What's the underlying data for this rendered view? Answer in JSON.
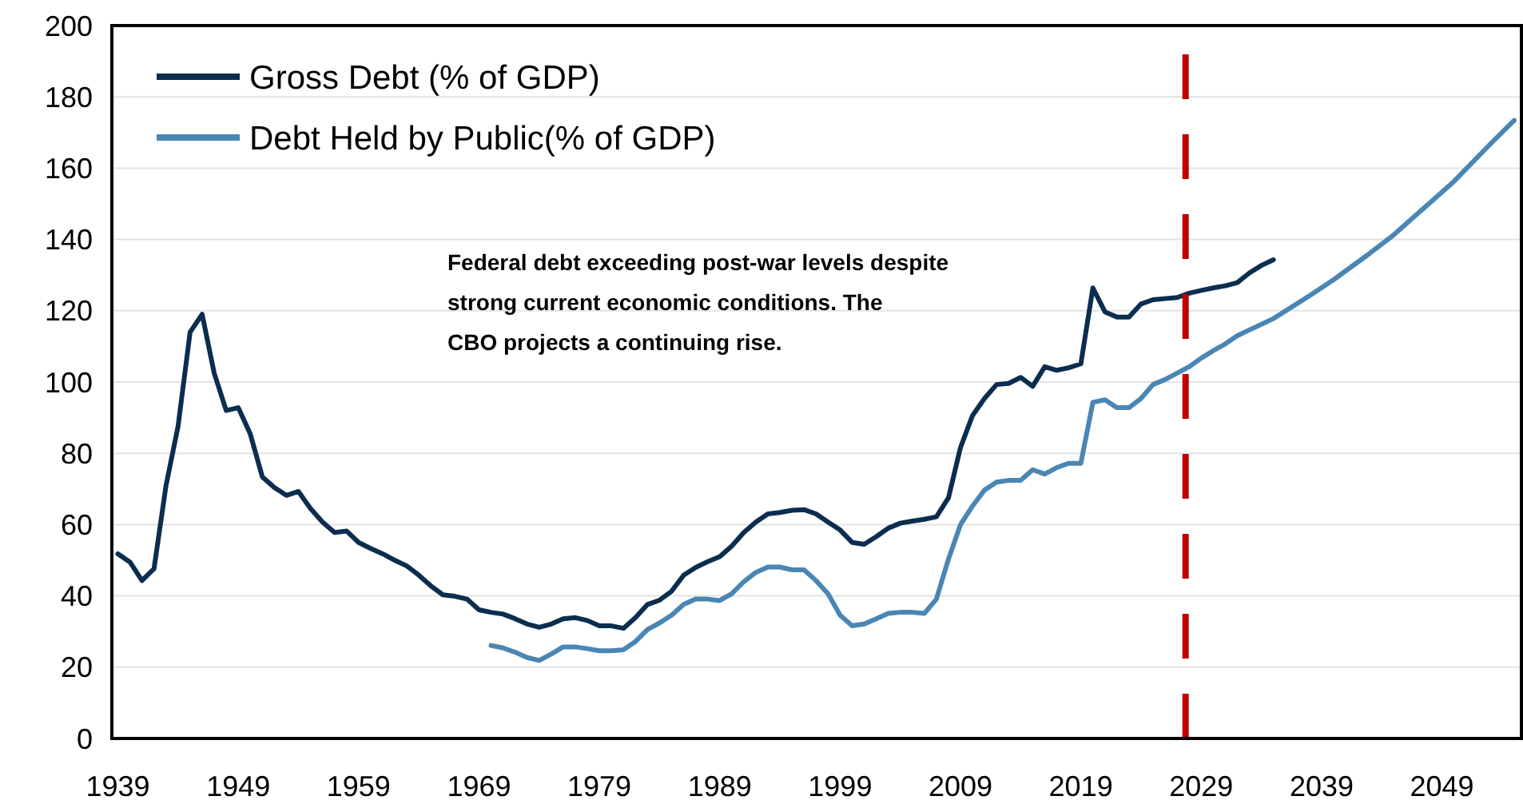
{
  "chart_data": {
    "type": "line",
    "xlim": [
      1938.5,
      2055.6
    ],
    "xticks": [
      1939,
      1949,
      1959,
      1969,
      1979,
      1989,
      1999,
      2009,
      2019,
      2029,
      2039,
      2049
    ],
    "ylim": [
      0,
      200
    ],
    "yticks": [
      0,
      20,
      40,
      60,
      80,
      100,
      120,
      140,
      160,
      180,
      200
    ],
    "grid": "y",
    "legend": "top left",
    "marker": "none",
    "line_style": "solid",
    "series": [
      {
        "name": "Gross Debt (% of GDP)",
        "color": "#0b2d4f",
        "x": [
          1939,
          1940,
          1941,
          1942,
          1943,
          1944,
          1945,
          1946,
          1947,
          1948,
          1949,
          1950,
          1951,
          1952,
          1953,
          1954,
          1955,
          1956,
          1957,
          1958,
          1959,
          1960,
          1961,
          1962,
          1963,
          1964,
          1965,
          1966,
          1967,
          1968,
          1969,
          1970,
          1971,
          1972,
          1973,
          1974,
          1975,
          1976,
          1977,
          1978,
          1979,
          1980,
          1981,
          1982,
          1983,
          1984,
          1985,
          1986,
          1987,
          1988,
          1989,
          1990,
          1991,
          1992,
          1993,
          1994,
          1995,
          1996,
          1997,
          1998,
          1999,
          2000,
          2001,
          2002,
          2003,
          2004,
          2005,
          2006,
          2007,
          2008,
          2009,
          2010,
          2011,
          2012,
          2013,
          2014,
          2015,
          2016,
          2017,
          2018,
          2019,
          2020,
          2021,
          2022,
          2023,
          2024,
          2025,
          2026,
          2027,
          2028,
          2029,
          2030,
          2031,
          2032,
          2033,
          2034,
          2035
        ],
        "values": [
          51.8,
          49.5,
          44.3,
          47.6,
          71,
          87.6,
          114,
          119,
          102.5,
          92,
          92.8,
          85.4,
          73.4,
          70.4,
          68.2,
          69.3,
          64.5,
          60.7,
          57.8,
          58.2,
          55,
          53.3,
          51.8,
          50,
          48.4,
          45.8,
          42.8,
          40.3,
          39.9,
          39.1,
          36.1,
          35.4,
          34.9,
          33.6,
          32.1,
          31.2,
          32.1,
          33.6,
          33.9,
          33.1,
          31.6,
          31.6,
          30.9,
          33.9,
          37.6,
          38.8,
          41.3,
          45.8,
          48,
          49.6,
          51,
          54,
          57.8,
          60.7,
          63,
          63.4,
          64,
          64.2,
          63,
          60.7,
          58.5,
          55,
          54.5,
          56.6,
          59,
          60.4,
          61,
          61.5,
          62.2,
          67.5,
          81.6,
          90.6,
          95.4,
          99.3,
          99.6,
          101.3,
          98.8,
          104.3,
          103.3,
          104,
          105.1,
          126.4,
          119.7,
          118.2,
          118.2,
          121.9,
          123.1,
          123.4,
          123.7,
          124.9,
          125.7,
          126.4,
          127,
          127.9,
          130.6,
          132.7,
          134.3
        ]
      },
      {
        "name": "Debt Held by Public(% of GDP)",
        "color": "#4a86b4",
        "x": [
          1970,
          1971,
          1972,
          1973,
          1974,
          1975,
          1976,
          1977,
          1978,
          1979,
          1980,
          1981,
          1982,
          1983,
          1984,
          1985,
          1986,
          1987,
          1988,
          1989,
          1990,
          1991,
          1992,
          1993,
          1994,
          1995,
          1996,
          1997,
          1998,
          1999,
          2000,
          2001,
          2002,
          2003,
          2004,
          2005,
          2006,
          2007,
          2008,
          2009,
          2010,
          2011,
          2012,
          2013,
          2014,
          2015,
          2016,
          2017,
          2018,
          2019,
          2020,
          2021,
          2022,
          2023,
          2024,
          2025,
          2026,
          2027,
          2028,
          2029,
          2030,
          2031,
          2032,
          2035,
          2038,
          2040,
          2043,
          2045,
          2048,
          2050,
          2053,
          2055
        ],
        "values": [
          26.1,
          25.4,
          24.2,
          22.7,
          21.9,
          23.7,
          25.7,
          25.7,
          25.2,
          24.6,
          24.6,
          24.9,
          27.2,
          30.6,
          32.4,
          34.6,
          37.6,
          39.1,
          39.1,
          38.7,
          40.6,
          44,
          46.6,
          48.1,
          48.1,
          47.3,
          47.3,
          44.3,
          40.6,
          34.6,
          31.6,
          32.1,
          33.6,
          35.1,
          35.4,
          35.4,
          35.1,
          39.1,
          50.3,
          60,
          65.2,
          69.7,
          71.9,
          72.4,
          72.4,
          75.4,
          74.2,
          76,
          77.2,
          77.2,
          94.3,
          95,
          92.8,
          92.8,
          95.4,
          99.3,
          100.7,
          102.5,
          104.3,
          106.7,
          108.8,
          110.7,
          113,
          117.8,
          124.2,
          128.7,
          136.1,
          141.3,
          150.3,
          156.3,
          166.7,
          173.4
        ]
      }
    ],
    "ref_lines": [
      {
        "axis": "x",
        "value": 2027.7,
        "color": "#c00000",
        "line_style": "dashed"
      }
    ],
    "annotations": [
      "Federal debt exceeding post-war levels despite\nstrong current economic conditions. The\nCBO projects a continuing rise."
    ]
  }
}
